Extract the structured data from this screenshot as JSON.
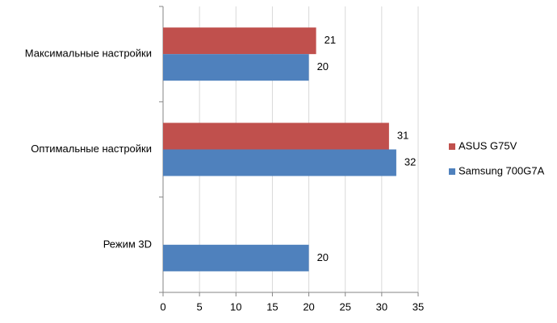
{
  "chart_data": {
    "type": "hbar",
    "categories": [
      "Максимальные настройки",
      "Оптимальные настройки",
      "Режим 3D"
    ],
    "series": [
      {
        "name": "ASUS G75V",
        "color": "#c0504d",
        "values": [
          21,
          31,
          null
        ]
      },
      {
        "name": "Samsung 700G7A",
        "color": "#4f81bd",
        "values": [
          20,
          32,
          20
        ]
      }
    ],
    "xlim": [
      0,
      35
    ],
    "xticks": [
      0,
      5,
      10,
      15,
      20,
      25,
      30,
      35
    ],
    "grid": true,
    "legend": "right"
  }
}
